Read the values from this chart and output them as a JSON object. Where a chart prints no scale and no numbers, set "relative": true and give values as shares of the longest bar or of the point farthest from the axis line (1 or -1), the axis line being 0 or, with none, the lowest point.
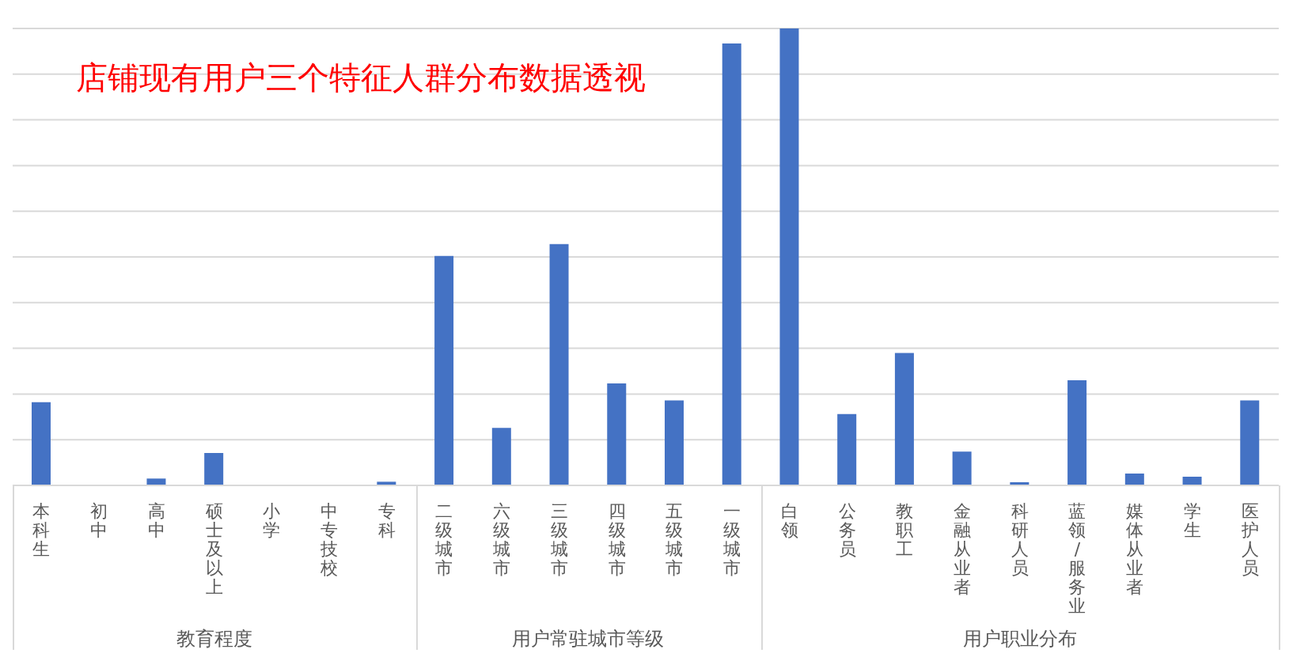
{
  "chart_data": {
    "type": "bar",
    "title": "店铺现有用户三个特征人群分布数据透视",
    "relative": true,
    "grid": "y",
    "color": "#4472c4",
    "categories": [
      "本科生",
      "初中",
      "高中",
      "硕士及以上",
      "小学",
      "中专技校",
      "专科",
      "二级城市",
      "六级城市",
      "三级城市",
      "四级城市",
      "五级城市",
      "一级城市",
      "白领",
      "公务员",
      "教职工",
      "金融从业者",
      "科研人员",
      "蓝领/服务业",
      "媒体从业者",
      "学生",
      "医护人员"
    ],
    "values": [
      0.182,
      0,
      0.015,
      0.071,
      0,
      0,
      0.008,
      0.502,
      0.126,
      0.528,
      0.223,
      0.186,
      0.967,
      1,
      0.156,
      0.29,
      0.074,
      0.007,
      0.23,
      0.026,
      0.019,
      0.186
    ],
    "annotations": [
      "教育程度",
      "用户常驻城市等级",
      "用户职业分布"
    ]
  }
}
